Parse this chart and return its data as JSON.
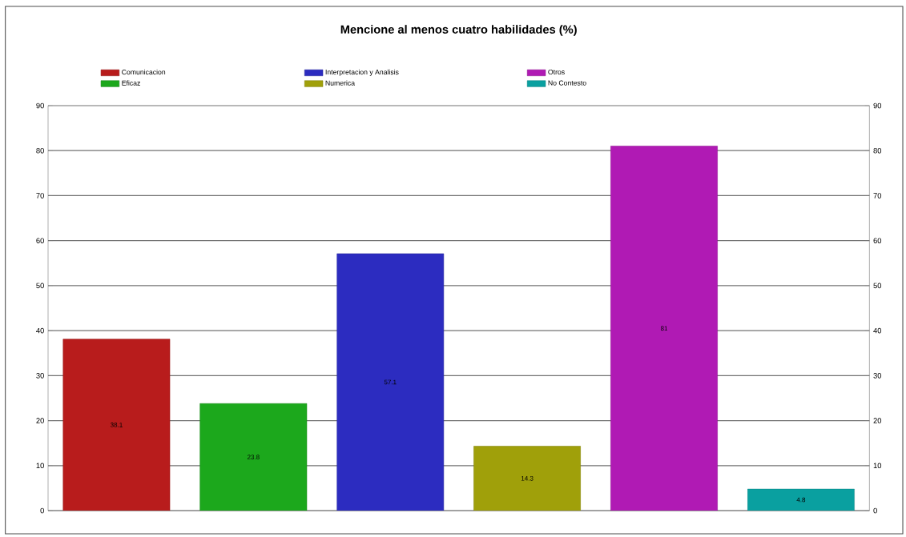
{
  "chart_data": {
    "type": "bar",
    "title": "Mencione al menos cuatro habilidades (%)",
    "categories": [
      null,
      null,
      null,
      null,
      null,
      null
    ],
    "series": [
      {
        "name": "Comunicacion",
        "color": "#b81c1c",
        "values": [
          38.1,
          null,
          null,
          null,
          null,
          null
        ]
      },
      {
        "name": "Eficaz",
        "color": "#1ca81c",
        "values": [
          null,
          23.8,
          null,
          null,
          null,
          null
        ]
      },
      {
        "name": "Interpretacion y Analisis",
        "color": "#2c2cc0",
        "values": [
          null,
          null,
          57.1,
          null,
          null,
          null
        ]
      },
      {
        "name": "Numerica",
        "color": "#a0a00a",
        "values": [
          null,
          null,
          null,
          14.3,
          null,
          null
        ]
      },
      {
        "name": "Otros",
        "color": "#b01ab4",
        "values": [
          null,
          null,
          null,
          null,
          81,
          null
        ]
      },
      {
        "name": "No Contesto",
        "color": "#0aa0a0",
        "values": [
          null,
          null,
          null,
          null,
          null,
          4.8
        ]
      }
    ],
    "ylim": [
      0,
      90
    ],
    "yticks": [
      0,
      10,
      20,
      30,
      40,
      50,
      60,
      70,
      80,
      90
    ],
    "y2lim": [
      0,
      90
    ],
    "y2ticks": [
      0,
      10,
      20,
      30,
      40,
      50,
      60,
      70,
      80,
      90
    ],
    "grid": "y",
    "legend": "top",
    "data_labels": true
  }
}
